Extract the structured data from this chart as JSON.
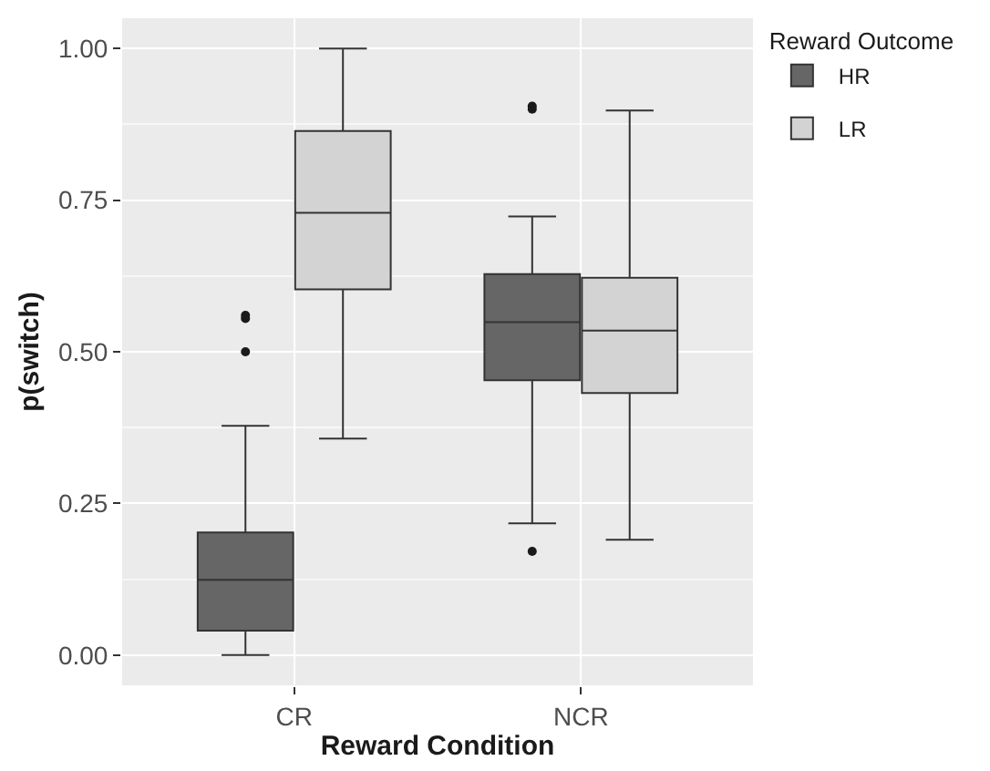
{
  "chart_data": {
    "type": "box",
    "xlabel": "Reward Condition",
    "ylabel": "p(switch)",
    "legend_title": "Reward Outcome",
    "categories": [
      "CR",
      "NCR"
    ],
    "series": [
      {
        "name": "HR",
        "color": "#666666",
        "boxes": [
          {
            "low": 0.0,
            "q1": 0.04,
            "median": 0.124,
            "q3": 0.202,
            "high": 0.378,
            "outliers": [
              0.5,
              0.555,
              0.56
            ]
          },
          {
            "low": 0.217,
            "q1": 0.453,
            "median": 0.549,
            "q3": 0.628,
            "high": 0.723,
            "outliers": [
              0.171,
              0.9,
              0.905
            ]
          }
        ]
      },
      {
        "name": "LR",
        "color": "#d3d3d3",
        "boxes": [
          {
            "low": 0.357,
            "q1": 0.603,
            "median": 0.729,
            "q3": 0.864,
            "high": 1.0
          },
          {
            "low": 0.19,
            "q1": 0.432,
            "median": 0.535,
            "q3": 0.622,
            "high": 0.898
          }
        ]
      }
    ],
    "ylim": [
      -0.05,
      1.05
    ],
    "yticks": [
      {
        "value": 0,
        "label": "0.00"
      },
      {
        "value": 0.25,
        "label": "0.25"
      },
      {
        "value": 0.5,
        "label": "0.50"
      },
      {
        "value": 0.75,
        "label": "0.75"
      },
      {
        "value": 1,
        "label": "1.00"
      }
    ],
    "grid": true,
    "legend": "right"
  }
}
